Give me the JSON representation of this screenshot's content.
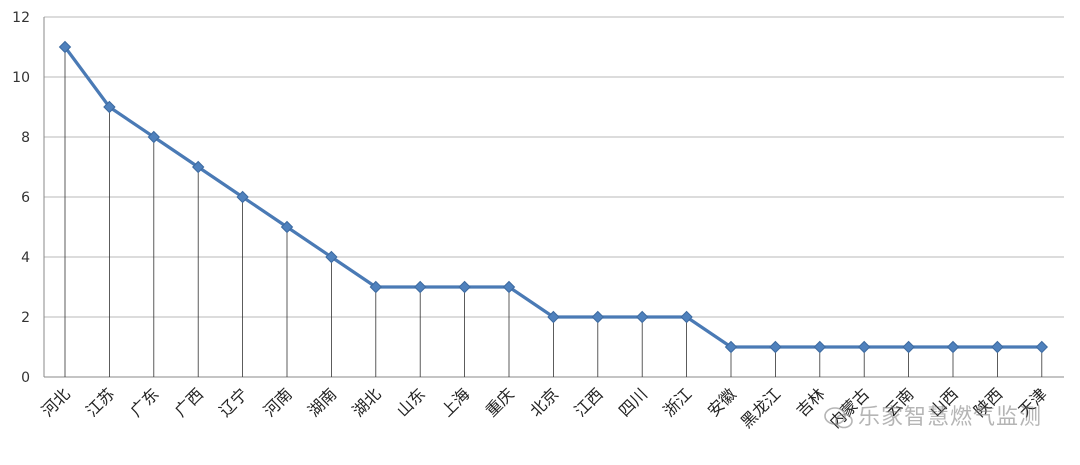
{
  "chart_data": {
    "type": "line",
    "title": "",
    "xlabel": "",
    "ylabel": "",
    "ylim": [
      0,
      12
    ],
    "yticks": [
      0,
      2,
      4,
      6,
      8,
      10,
      12
    ],
    "grid": "horizontal",
    "drop_lines": true,
    "marker": "diamond",
    "line_color": "#4a7ab5",
    "marker_color": "#4f81bd",
    "categories": [
      "河北",
      "江苏",
      "广东",
      "广西",
      "辽宁",
      "河南",
      "湖南",
      "湖北",
      "山东",
      "上海",
      "重庆",
      "北京",
      "江西",
      "四川",
      "浙江",
      "安徽",
      "黑龙江",
      "吉林",
      "内蒙古",
      "云南",
      "山西",
      "陕西",
      "天津"
    ],
    "series": [
      {
        "values": [
          11,
          9,
          8,
          7,
          6,
          5,
          4,
          3,
          3,
          3,
          3,
          2,
          2,
          2,
          2,
          1,
          1,
          1,
          1,
          1,
          1,
          1,
          1
        ]
      }
    ]
  },
  "watermark": {
    "text": "乐家智慧燃气监测",
    "icon": "wechat-icon"
  }
}
